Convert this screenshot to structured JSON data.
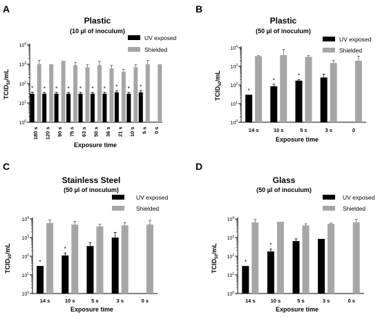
{
  "colors": {
    "uv": "#000000",
    "shielded": "#a6a6a6",
    "axis": "#000000"
  },
  "chart_data": [
    {
      "panel": "A",
      "type": "bar",
      "title": "Plastic",
      "subtitle": "(10 µl of inoculum)",
      "xlabel": "Exposure time",
      "ylabel": "TCID50/mL",
      "ylabel_main": "TCID",
      "ylabel_sub": "50",
      "ylabel_tail": "/mL",
      "yscale": "log",
      "ylim": [
        1,
        10000
      ],
      "yticks": [
        {
          "exp": "0"
        },
        {
          "exp": "1"
        },
        {
          "exp": "2"
        },
        {
          "exp": "3"
        },
        {
          "exp": "4"
        }
      ],
      "legend": [
        "UV exposed",
        "Shielded"
      ],
      "legend_position": "top-right",
      "categories": [
        "180 s",
        "120 s",
        "90 s",
        "75 s",
        "63 s",
        "50 s",
        "36 s",
        "21 s",
        "10 s",
        "5 s",
        "0 s"
      ],
      "series": [
        {
          "name": "UV exposed",
          "values": [
            30,
            30,
            30,
            30,
            30,
            30,
            30,
            35,
            30,
            35,
            null
          ],
          "err": [
            6,
            5,
            5,
            5,
            5,
            5,
            5,
            8,
            5,
            8,
            null
          ],
          "star": [
            true,
            true,
            true,
            true,
            true,
            true,
            true,
            true,
            true,
            true,
            false
          ]
        },
        {
          "name": "Shielded",
          "values": [
            1000,
            1000,
            1500,
            900,
            700,
            900,
            600,
            400,
            700,
            1000,
            1000
          ],
          "err": [
            600,
            0,
            0,
            350,
            250,
            500,
            300,
            150,
            250,
            550,
            0
          ],
          "star": [
            false,
            false,
            false,
            false,
            false,
            false,
            false,
            false,
            false,
            false,
            false
          ]
        }
      ]
    },
    {
      "panel": "B",
      "type": "bar",
      "title": "Plastic",
      "subtitle": "(50 µl of inoculum)",
      "xlabel": "Exposure time",
      "ylabel": "TCID50/mL",
      "ylabel_main": "TCID",
      "ylabel_sub": "50",
      "ylabel_tail": "/mL",
      "yscale": "log",
      "ylim": [
        1,
        10000
      ],
      "yticks": [
        {
          "exp": "0"
        },
        {
          "exp": "1"
        },
        {
          "exp": "2"
        },
        {
          "exp": "3"
        },
        {
          "exp": "4"
        }
      ],
      "legend": [
        "UV exposed",
        "Shielded"
      ],
      "legend_position": "top-right",
      "categories": [
        "14 s",
        "10 s",
        "5 s",
        "3 s",
        "0"
      ],
      "series": [
        {
          "name": "UV exposed",
          "values": [
            30,
            85,
            170,
            250,
            null
          ],
          "err": [
            0,
            25,
            25,
            130,
            null
          ],
          "star": [
            true,
            true,
            true,
            false,
            false
          ]
        },
        {
          "name": "Shielded",
          "values": [
            3500,
            4000,
            3200,
            1500,
            2000
          ],
          "err": [
            200,
            4000,
            500,
            600,
            1500
          ],
          "star": [
            false,
            false,
            false,
            false,
            false
          ]
        }
      ]
    },
    {
      "panel": "C",
      "type": "bar",
      "title": "Stainless Steel",
      "subtitle": "(50 µl of inoculum)",
      "xlabel": "Exposure time",
      "ylabel": "TCID50/mL",
      "ylabel_main": "TCID",
      "ylabel_sub": "50",
      "ylabel_tail": "/mL",
      "yscale": "log",
      "ylim": [
        1,
        10000
      ],
      "yticks": [
        {
          "exp": "0"
        },
        {
          "exp": "1"
        },
        {
          "exp": "2"
        },
        {
          "exp": "3"
        },
        {
          "exp": "4"
        }
      ],
      "legend": [
        "UV exposed",
        "Shielded"
      ],
      "legend_position": "top-right",
      "categories": [
        "14 s",
        "10 s",
        "5 s",
        "3 s",
        "0 s"
      ],
      "series": [
        {
          "name": "UV exposed",
          "values": [
            30,
            110,
            350,
            1000,
            null
          ],
          "err": [
            0,
            40,
            200,
            900,
            null
          ],
          "star": [
            true,
            true,
            false,
            false,
            false
          ]
        },
        {
          "name": "Shielded",
          "values": [
            6000,
            5000,
            4000,
            4500,
            5000
          ],
          "err": [
            3000,
            2500,
            1200,
            1800,
            3500
          ],
          "star": [
            false,
            false,
            false,
            false,
            false
          ]
        }
      ]
    },
    {
      "panel": "D",
      "type": "bar",
      "title": "Glass",
      "subtitle": "(50 µl of inoculum)",
      "xlabel": "Exposure time",
      "ylabel": "TCID50/mL",
      "ylabel_main": "TCID",
      "ylabel_sub": "50",
      "ylabel_tail": "/mL",
      "yscale": "log",
      "ylim": [
        1,
        10000
      ],
      "yticks": [
        {
          "exp": "0"
        },
        {
          "exp": "1"
        },
        {
          "exp": "2"
        },
        {
          "exp": "3"
        },
        {
          "exp": "4"
        }
      ],
      "legend": [
        "UV exposed",
        "Shielded"
      ],
      "legend_position": "top-right",
      "categories": [
        "14 s",
        "10 s",
        "5 s",
        "3 s",
        "0 s"
      ],
      "series": [
        {
          "name": "UV exposed",
          "values": [
            30,
            180,
            650,
            850,
            null
          ],
          "err": [
            0,
            60,
            200,
            0,
            null
          ],
          "star": [
            true,
            true,
            false,
            false,
            false
          ]
        },
        {
          "name": "Shielded",
          "values": [
            6500,
            7000,
            4500,
            5500,
            6500
          ],
          "err": [
            3000,
            0,
            1000,
            500,
            3000
          ],
          "star": [
            false,
            false,
            false,
            false,
            false
          ]
        }
      ]
    }
  ]
}
